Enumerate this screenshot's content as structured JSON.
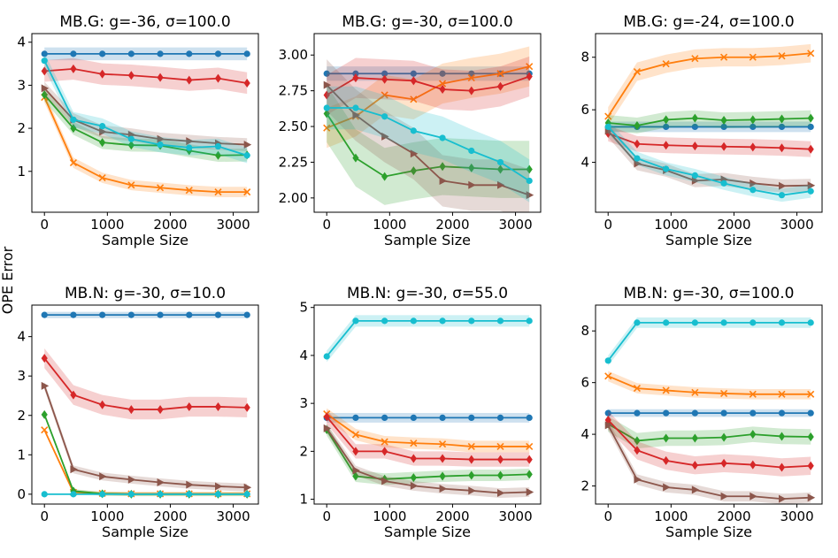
{
  "figure": {
    "ylabel": "OPE Error"
  },
  "chart_data": [
    {
      "type": "line",
      "title": "MB.G: g=-36, σ=100.0",
      "xlabel": "Sample Size",
      "ylabel": "OPE Error",
      "xlim": [
        -200,
        3400
      ],
      "ylim": [
        0.05,
        4.2
      ],
      "xticks": [
        0,
        1000,
        2000,
        3000
      ],
      "yticks": [
        1,
        2,
        3,
        4
      ],
      "x": [
        0,
        460,
        920,
        1380,
        1840,
        2300,
        2760,
        3220
      ],
      "series": [
        {
          "name": "blue",
          "color": "#1f77b4",
          "marker": "circle",
          "values": [
            3.73,
            3.73,
            3.73,
            3.73,
            3.73,
            3.73,
            3.73,
            3.73
          ],
          "band": 0.15
        },
        {
          "name": "orange",
          "color": "#ff7f0e",
          "marker": "x",
          "values": [
            2.72,
            1.2,
            0.85,
            0.68,
            0.62,
            0.56,
            0.52,
            0.52
          ],
          "band": 0.12
        },
        {
          "name": "green",
          "color": "#2ca02c",
          "marker": "diamond",
          "values": [
            2.78,
            2.0,
            1.67,
            1.61,
            1.6,
            1.48,
            1.37,
            1.38
          ],
          "band": 0.15
        },
        {
          "name": "red",
          "color": "#d62728",
          "marker": "diamond",
          "values": [
            3.33,
            3.38,
            3.26,
            3.23,
            3.18,
            3.12,
            3.16,
            3.05
          ],
          "band": 0.25
        },
        {
          "name": "brown",
          "color": "#8c564b",
          "marker": "triangle-right",
          "values": [
            2.93,
            2.2,
            1.92,
            1.85,
            1.75,
            1.7,
            1.65,
            1.62
          ],
          "band": 0.15
        },
        {
          "name": "cyan",
          "color": "#17becf",
          "marker": "circle",
          "values": [
            3.57,
            2.2,
            2.05,
            1.75,
            1.62,
            1.55,
            1.58,
            1.37
          ],
          "band": 0.18
        }
      ]
    },
    {
      "type": "line",
      "title": "MB.G: g=-30, σ=100.0",
      "xlabel": "Sample Size",
      "ylabel": "",
      "xlim": [
        -200,
        3400
      ],
      "ylim": [
        1.9,
        3.15
      ],
      "xticks": [
        0,
        1000,
        2000,
        3000
      ],
      "yticks": [
        2.0,
        2.25,
        2.5,
        2.75,
        3.0
      ],
      "ytick_labels": [
        "2.00",
        "2.25",
        "2.50",
        "2.75",
        "3.00"
      ],
      "x": [
        0,
        460,
        920,
        1380,
        1840,
        2300,
        2760,
        3220
      ],
      "series": [
        {
          "name": "blue",
          "color": "#1f77b4",
          "marker": "circle",
          "values": [
            2.87,
            2.87,
            2.87,
            2.87,
            2.87,
            2.87,
            2.87,
            2.87
          ],
          "band": 0.05
        },
        {
          "name": "orange",
          "color": "#ff7f0e",
          "marker": "x",
          "values": [
            2.49,
            2.57,
            2.72,
            2.69,
            2.8,
            2.84,
            2.87,
            2.92
          ],
          "band": 0.14
        },
        {
          "name": "green",
          "color": "#2ca02c",
          "marker": "diamond",
          "values": [
            2.59,
            2.28,
            2.15,
            2.19,
            2.22,
            2.21,
            2.2,
            2.2
          ],
          "band": 0.2
        },
        {
          "name": "red",
          "color": "#d62728",
          "marker": "diamond",
          "values": [
            2.72,
            2.84,
            2.83,
            2.82,
            2.76,
            2.75,
            2.78,
            2.85
          ],
          "band": 0.14
        },
        {
          "name": "brown",
          "color": "#8c564b",
          "marker": "triangle-right",
          "values": [
            2.79,
            2.58,
            2.43,
            2.31,
            2.12,
            2.09,
            2.09,
            2.02
          ],
          "band": 0.18
        },
        {
          "name": "cyan",
          "color": "#17becf",
          "marker": "circle",
          "values": [
            2.63,
            2.63,
            2.57,
            2.47,
            2.42,
            2.33,
            2.25,
            2.12
          ],
          "band": 0.15
        }
      ]
    },
    {
      "type": "line",
      "title": "MB.G: g=-24, σ=100.0",
      "xlabel": "Sample Size",
      "ylabel": "",
      "xlim": [
        -200,
        3400
      ],
      "ylim": [
        2.1,
        8.9
      ],
      "xticks": [
        0,
        1000,
        2000,
        3000
      ],
      "yticks": [
        4,
        6,
        8
      ],
      "x": [
        0,
        460,
        920,
        1380,
        1840,
        2300,
        2760,
        3220
      ],
      "series": [
        {
          "name": "blue",
          "color": "#1f77b4",
          "marker": "circle",
          "values": [
            5.35,
            5.35,
            5.35,
            5.35,
            5.35,
            5.35,
            5.35,
            5.35
          ],
          "band": 0.2
        },
        {
          "name": "orange",
          "color": "#ff7f0e",
          "marker": "x",
          "values": [
            5.75,
            7.45,
            7.75,
            7.95,
            8.0,
            8.0,
            8.05,
            8.15
          ],
          "band": 0.35
        },
        {
          "name": "green",
          "color": "#2ca02c",
          "marker": "diamond",
          "values": [
            5.5,
            5.4,
            5.62,
            5.68,
            5.6,
            5.62,
            5.65,
            5.68
          ],
          "band": 0.3
        },
        {
          "name": "red",
          "color": "#d62728",
          "marker": "diamond",
          "values": [
            5.1,
            4.7,
            4.65,
            4.62,
            4.6,
            4.58,
            4.55,
            4.5
          ],
          "band": 0.3
        },
        {
          "name": "brown",
          "color": "#8c564b",
          "marker": "triangle-right",
          "values": [
            5.2,
            3.95,
            3.7,
            3.3,
            3.35,
            3.2,
            3.1,
            3.12
          ],
          "band": 0.25
        },
        {
          "name": "cyan",
          "color": "#17becf",
          "marker": "circle",
          "values": [
            5.35,
            4.15,
            3.75,
            3.5,
            3.2,
            2.95,
            2.75,
            2.9
          ],
          "band": 0.25
        }
      ]
    },
    {
      "type": "line",
      "title": "MB.N: g=-30, σ=10.0",
      "xlabel": "Sample Size",
      "ylabel": "",
      "xlim": [
        -200,
        3400
      ],
      "ylim": [
        -0.25,
        4.8
      ],
      "xticks": [
        0,
        1000,
        2000,
        3000
      ],
      "yticks": [
        0,
        1,
        2,
        3,
        4
      ],
      "x": [
        0,
        460,
        920,
        1380,
        1840,
        2300,
        2760,
        3220
      ],
      "series": [
        {
          "name": "blue",
          "color": "#1f77b4",
          "marker": "circle",
          "values": [
            4.55,
            4.55,
            4.55,
            4.55,
            4.55,
            4.55,
            4.55,
            4.55
          ],
          "band": 0.08
        },
        {
          "name": "orange",
          "color": "#ff7f0e",
          "marker": "x",
          "values": [
            1.63,
            0.05,
            0.02,
            0.01,
            0.01,
            0.01,
            0.01,
            0.01
          ],
          "band": 0.05
        },
        {
          "name": "green",
          "color": "#2ca02c",
          "marker": "diamond",
          "values": [
            2.02,
            0.08,
            0.01,
            0.0,
            0.0,
            0.0,
            0.0,
            0.0
          ],
          "band": 0.05
        },
        {
          "name": "red",
          "color": "#d62728",
          "marker": "diamond",
          "values": [
            3.45,
            2.52,
            2.27,
            2.15,
            2.15,
            2.22,
            2.22,
            2.2
          ],
          "band": 0.25
        },
        {
          "name": "brown",
          "color": "#8c564b",
          "marker": "triangle-right",
          "values": [
            2.75,
            0.63,
            0.45,
            0.37,
            0.3,
            0.24,
            0.2,
            0.17
          ],
          "band": 0.1
        },
        {
          "name": "cyan",
          "color": "#17becf",
          "marker": "circle",
          "values": [
            0.0,
            0.0,
            0.0,
            0.0,
            0.0,
            0.0,
            0.0,
            0.0
          ],
          "band": 0.0
        }
      ]
    },
    {
      "type": "line",
      "title": "MB.N: g=-30, σ=55.0",
      "xlabel": "Sample Size",
      "ylabel": "",
      "xlim": [
        -200,
        3400
      ],
      "ylim": [
        0.9,
        5.05
      ],
      "xticks": [
        0,
        1000,
        2000,
        3000
      ],
      "yticks": [
        1,
        2,
        3,
        4,
        5
      ],
      "x": [
        0,
        460,
        920,
        1380,
        1840,
        2300,
        2760,
        3220
      ],
      "series": [
        {
          "name": "blue",
          "color": "#1f77b4",
          "marker": "circle",
          "values": [
            2.7,
            2.7,
            2.7,
            2.7,
            2.7,
            2.7,
            2.7,
            2.7
          ],
          "band": 0.1
        },
        {
          "name": "orange",
          "color": "#ff7f0e",
          "marker": "x",
          "values": [
            2.78,
            2.35,
            2.2,
            2.17,
            2.15,
            2.1,
            2.1,
            2.1
          ],
          "band": 0.12
        },
        {
          "name": "green",
          "color": "#2ca02c",
          "marker": "diamond",
          "values": [
            2.45,
            1.48,
            1.42,
            1.45,
            1.48,
            1.5,
            1.5,
            1.52
          ],
          "band": 0.12
        },
        {
          "name": "red",
          "color": "#d62728",
          "marker": "diamond",
          "values": [
            2.72,
            2.0,
            2.0,
            1.85,
            1.85,
            1.83,
            1.83,
            1.83
          ],
          "band": 0.15
        },
        {
          "name": "brown",
          "color": "#8c564b",
          "marker": "triangle-right",
          "values": [
            2.48,
            1.6,
            1.38,
            1.28,
            1.22,
            1.18,
            1.13,
            1.15
          ],
          "band": 0.1
        },
        {
          "name": "cyan",
          "color": "#17becf",
          "marker": "circle",
          "values": [
            3.98,
            4.72,
            4.72,
            4.72,
            4.72,
            4.72,
            4.72,
            4.72
          ],
          "band": 0.12
        }
      ]
    },
    {
      "type": "line",
      "title": "MB.N: g=-30, σ=100.0",
      "xlabel": "Sample Size",
      "ylabel": "",
      "xlim": [
        -200,
        3400
      ],
      "ylim": [
        1.3,
        9.0
      ],
      "xticks": [
        0,
        1000,
        2000,
        3000
      ],
      "yticks": [
        2,
        4,
        6,
        8
      ],
      "x": [
        0,
        460,
        920,
        1380,
        1840,
        2300,
        2760,
        3220
      ],
      "series": [
        {
          "name": "blue",
          "color": "#1f77b4",
          "marker": "circle",
          "values": [
            4.82,
            4.82,
            4.82,
            4.82,
            4.82,
            4.82,
            4.82,
            4.82
          ],
          "band": 0.15
        },
        {
          "name": "orange",
          "color": "#ff7f0e",
          "marker": "x",
          "values": [
            6.25,
            5.78,
            5.7,
            5.62,
            5.58,
            5.55,
            5.55,
            5.55
          ],
          "band": 0.2
        },
        {
          "name": "green",
          "color": "#2ca02c",
          "marker": "diamond",
          "values": [
            4.4,
            3.75,
            3.85,
            3.85,
            3.88,
            4.0,
            3.92,
            3.9
          ],
          "band": 0.3
        },
        {
          "name": "red",
          "color": "#d62728",
          "marker": "diamond",
          "values": [
            4.55,
            3.38,
            2.98,
            2.8,
            2.88,
            2.82,
            2.72,
            2.78
          ],
          "band": 0.35
        },
        {
          "name": "brown",
          "color": "#8c564b",
          "marker": "triangle-right",
          "values": [
            4.35,
            2.25,
            1.95,
            1.85,
            1.6,
            1.6,
            1.5,
            1.55
          ],
          "band": 0.2
        },
        {
          "name": "cyan",
          "color": "#17becf",
          "marker": "circle",
          "values": [
            6.85,
            8.32,
            8.32,
            8.32,
            8.32,
            8.32,
            8.32,
            8.32
          ],
          "band": 0.2
        }
      ]
    }
  ]
}
